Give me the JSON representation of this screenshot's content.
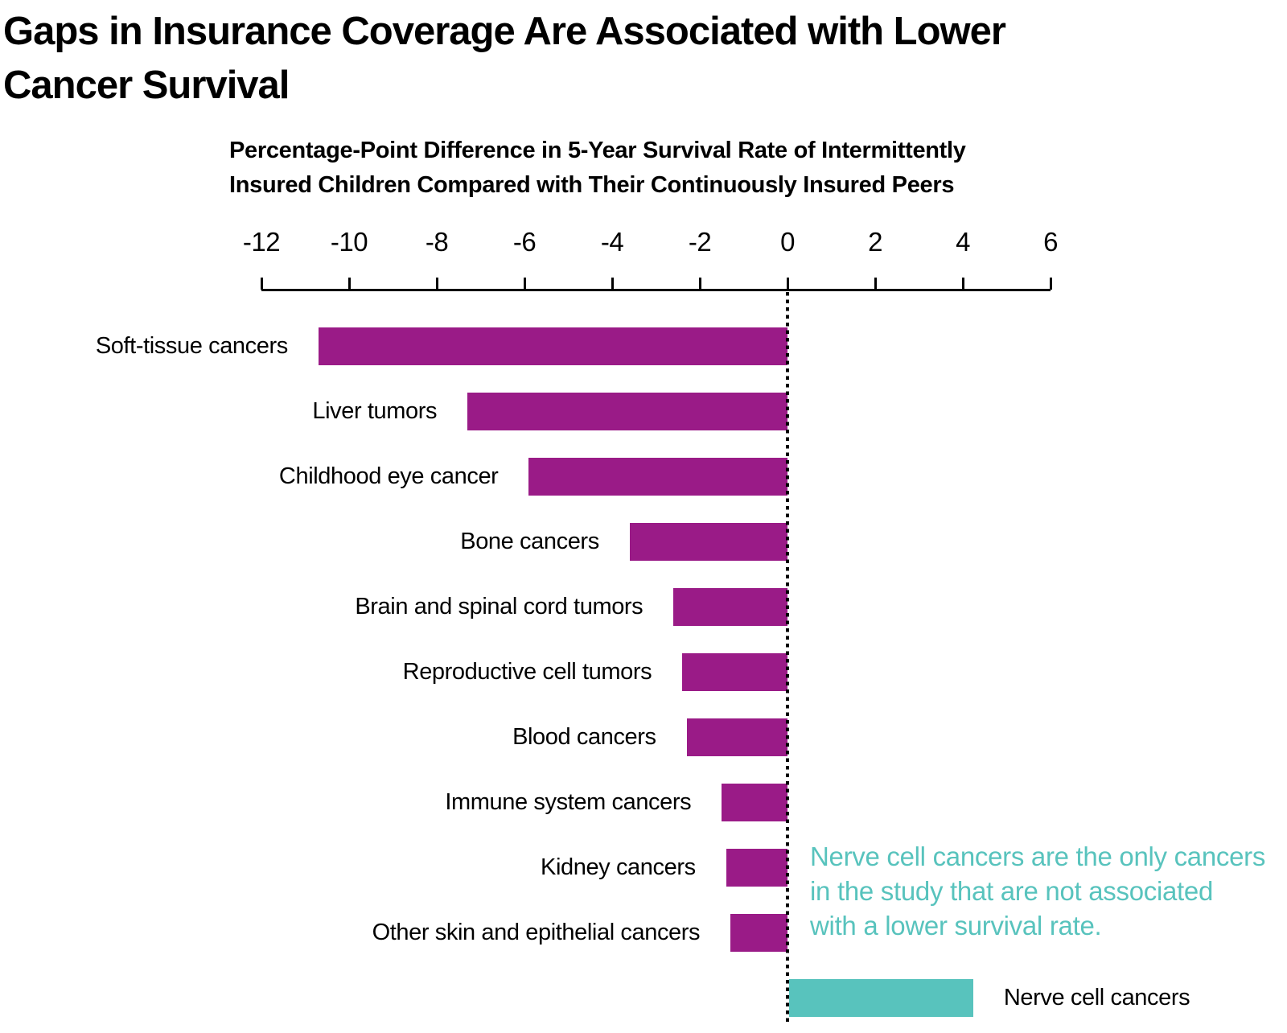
{
  "figure": {
    "title_lines": [
      "Gaps in Insurance Coverage Are Associated with Lower",
      "Cancer Survival"
    ]
  },
  "chart_data": {
    "type": "bar",
    "orientation": "horizontal",
    "title": "Gaps in Insurance Coverage Are Associated with Lower Cancer Survival",
    "axis_title": "Percentage-Point Difference in 5-Year Survival Rate of Intermittently Insured Children Compared with Their Continuously Insured Peers",
    "axis_title_lines": [
      "Percentage-Point Difference in 5-Year Survival Rate of Intermittently",
      "Insured Children Compared with Their Continuously Insured Peers"
    ],
    "categories": [
      "Soft-tissue cancers",
      "Liver tumors",
      "Childhood eye cancer",
      "Bone cancers",
      "Brain and spinal cord tumors",
      "Reproductive cell tumors",
      "Blood cancers",
      "Immune system cancers",
      "Kidney cancers",
      "Other skin and epithelial cancers",
      "Nerve cell cancers"
    ],
    "values": [
      -10.7,
      -7.3,
      -5.9,
      -3.6,
      -2.6,
      -2.4,
      -2.3,
      -1.5,
      -1.4,
      -1.3,
      4.2
    ],
    "xlim": [
      -12,
      6
    ],
    "xticks": [
      -12,
      -10,
      -8,
      -6,
      -4,
      -2,
      0,
      2,
      4,
      6
    ],
    "grid": false,
    "zero_line_style": "dotted",
    "colors": {
      "negative_bar": "#9A1B87",
      "positive_bar": "#58C3BD",
      "annotation_text": "#58C3BD",
      "axis": "#000000",
      "text": "#000000"
    },
    "annotation_lines": [
      "Nerve cell cancers are the only cancers",
      "in the study that are not associated",
      "with a lower survival rate."
    ]
  }
}
